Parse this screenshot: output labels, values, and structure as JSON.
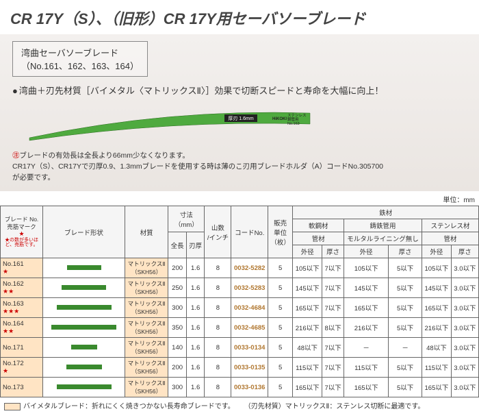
{
  "title": "CR 17Y（S）、（旧形）CR 17Y用セーバソーブレード",
  "hero": {
    "subbox_l1": "湾曲セーバソーブレード",
    "subbox_l2": "（No.161、162、163、164）",
    "bullet": "湾曲＋刃先材質［バイメタル〈マトリックスⅡ〉］効果で切断スピードと寿命を大幅に向上！",
    "blade_color": "#4faa3f",
    "blade_label1": "厚刃 1.6mm",
    "blade_label2": "ステンレス\n鋼管用\nNo.163",
    "note_mark": "㊟",
    "note_l1": "ブレードの有効長は全長より66mm少なくなります。",
    "note_l2": "CR17Y（S）、CR17Yで刃厚0.9、1.3mmブレードを使用する時は薄のこ刃用ブレードホルダ（A）コードNo.305700",
    "note_l3": "が必要です。"
  },
  "unit": "単位：mm",
  "headers": {
    "no_l1": "ブレード No.",
    "no_l2": "売筋マーク",
    "no_star": "★",
    "no_legend": "★の数が多いほど、売筋です。",
    "shape": "ブレード形状",
    "material": "材質",
    "dims": "寸法\n（mm）",
    "len": "全長",
    "thick": "刃厚",
    "tpi": "山数\n/インチ",
    "code": "コードNo.",
    "pkg": "販売\n単位\n（枚）",
    "iron": "鉄材",
    "soft": "軟鋼材",
    "cast": "鋳鉄管用",
    "stainless": "ステンレス材",
    "pipe": "管材",
    "mortar": "モルタルライニング無し",
    "od": "外径",
    "th": "厚さ"
  },
  "rows": [
    {
      "no": "No.161",
      "stars": "★",
      "shape_w": 50,
      "mat": "マトリックスⅡ\n（SKH56）",
      "len": "200",
      "thk": "1.6",
      "tpi": "8",
      "code": "0032-5282",
      "pkg": "5",
      "s_od": "105以下",
      "s_th": "7以下",
      "c_od": "105以下",
      "c_th": "5以下",
      "st_od": "105以下",
      "st_th": "3.0以下",
      "peach": true
    },
    {
      "no": "No.162",
      "stars": "★★",
      "shape_w": 65,
      "mat": "マトリックスⅡ\n（SKH56）",
      "len": "250",
      "thk": "1.6",
      "tpi": "8",
      "code": "0032-5283",
      "pkg": "5",
      "s_od": "145以下",
      "s_th": "7以下",
      "c_od": "145以下",
      "c_th": "5以下",
      "st_od": "145以下",
      "st_th": "3.0以下",
      "peach": true
    },
    {
      "no": "No.163",
      "stars": "★★★",
      "shape_w": 80,
      "mat": "マトリックスⅡ\n（SKH56）",
      "len": "300",
      "thk": "1.6",
      "tpi": "8",
      "code": "0032-4684",
      "pkg": "5",
      "s_od": "165以下",
      "s_th": "7以下",
      "c_od": "165以下",
      "c_th": "5以下",
      "st_od": "165以下",
      "st_th": "3.0以下",
      "peach": true
    },
    {
      "no": "No.164",
      "stars": "★★",
      "shape_w": 95,
      "mat": "マトリックスⅡ\n（SKH56）",
      "len": "350",
      "thk": "1.6",
      "tpi": "8",
      "code": "0032-4685",
      "pkg": "5",
      "s_od": "216以下",
      "s_th": "8以下",
      "c_od": "216以下",
      "c_th": "5以下",
      "st_od": "216以下",
      "st_th": "3.0以下",
      "peach": true
    },
    {
      "no": "No.171",
      "stars": "",
      "shape_w": 38,
      "mat": "マトリックスⅡ\n（SKH56）",
      "len": "140",
      "thk": "1.6",
      "tpi": "8",
      "code": "0033-0134",
      "pkg": "5",
      "s_od": "48以下",
      "s_th": "7以下",
      "c_od": "－",
      "c_th": "－",
      "st_od": "48以下",
      "st_th": "3.0以下",
      "peach": true
    },
    {
      "no": "No.172",
      "stars": "★",
      "shape_w": 52,
      "mat": "マトリックスⅡ\n（SKH56）",
      "len": "200",
      "thk": "1.6",
      "tpi": "8",
      "code": "0033-0135",
      "pkg": "5",
      "s_od": "115以下",
      "s_th": "7以下",
      "c_od": "115以下",
      "c_th": "5以下",
      "st_od": "115以下",
      "st_th": "3.0以下",
      "peach": true
    },
    {
      "no": "No.173",
      "stars": "",
      "shape_w": 80,
      "mat": "マトリックスⅡ\n（SKH56）",
      "len": "300",
      "thk": "1.6",
      "tpi": "8",
      "code": "0033-0136",
      "pkg": "5",
      "s_od": "165以下",
      "s_th": "7以下",
      "c_od": "165以下",
      "c_th": "5以下",
      "st_od": "165以下",
      "st_th": "3.0以下",
      "peach": true
    }
  ],
  "legend": {
    "bimetal": "バイメタルブレード：折れにくく焼きつかない長寿命ブレードです。",
    "matrix": "（刃先材質）マトリックスⅡ：ステンレス切断に最適です。"
  }
}
